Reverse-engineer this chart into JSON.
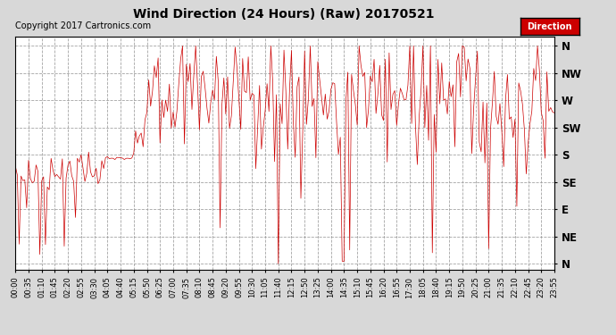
{
  "title": "Wind Direction (24 Hours) (Raw) 20170521",
  "copyright": "Copyright 2017 Cartronics.com",
  "legend_label": "Direction",
  "legend_bg": "#cc0000",
  "legend_text_color": "#ffffff",
  "line_color": "#cc0000",
  "bg_color": "#d8d8d8",
  "plot_bg_color": "#ffffff",
  "grid_color": "#999999",
  "ytick_labels": [
    "N",
    "NW",
    "W",
    "SW",
    "S",
    "SE",
    "E",
    "NE",
    "N"
  ],
  "ytick_values": [
    360,
    315,
    270,
    225,
    180,
    135,
    90,
    45,
    0
  ],
  "ylim": [
    -10,
    375
  ],
  "xlabel_fontsize": 6,
  "ylabel_fontsize": 8.5,
  "title_fontsize": 10,
  "copyright_fontsize": 7,
  "seed": 42,
  "num_points": 288,
  "xtick_labels": [
    "00:00",
    "00:35",
    "01:10",
    "01:45",
    "02:20",
    "02:55",
    "03:30",
    "04:05",
    "04:40",
    "05:15",
    "05:50",
    "06:25",
    "07:00",
    "07:35",
    "08:10",
    "08:45",
    "09:20",
    "09:55",
    "10:30",
    "11:05",
    "11:40",
    "12:15",
    "12:50",
    "13:25",
    "14:00",
    "14:35",
    "15:10",
    "15:45",
    "16:20",
    "16:55",
    "17:30",
    "18:05",
    "18:40",
    "19:15",
    "19:50",
    "20:25",
    "21:00",
    "21:35",
    "22:10",
    "22:45",
    "23:20",
    "23:55"
  ]
}
